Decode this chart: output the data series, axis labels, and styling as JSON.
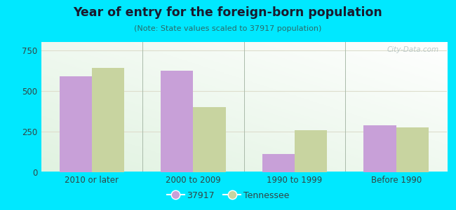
{
  "title": "Year of entry for the foreign-born population",
  "subtitle": "(Note: State values scaled to 37917 population)",
  "categories": [
    "2010 or later",
    "2000 to 2009",
    "1990 to 1999",
    "Before 1990"
  ],
  "values_city": [
    590,
    625,
    110,
    290
  ],
  "values_state": [
    640,
    400,
    260,
    275
  ],
  "color_city": "#c8a0d8",
  "color_state": "#c8d4a0",
  "legend_city": "37917",
  "legend_state": "Tennessee",
  "ylim": [
    0,
    800
  ],
  "yticks": [
    0,
    250,
    500,
    750
  ],
  "outer_background": "#00e8ff",
  "bar_width": 0.32,
  "watermark": "City-Data.com",
  "title_color": "#1a1a2e",
  "subtitle_color": "#2a6a6a"
}
